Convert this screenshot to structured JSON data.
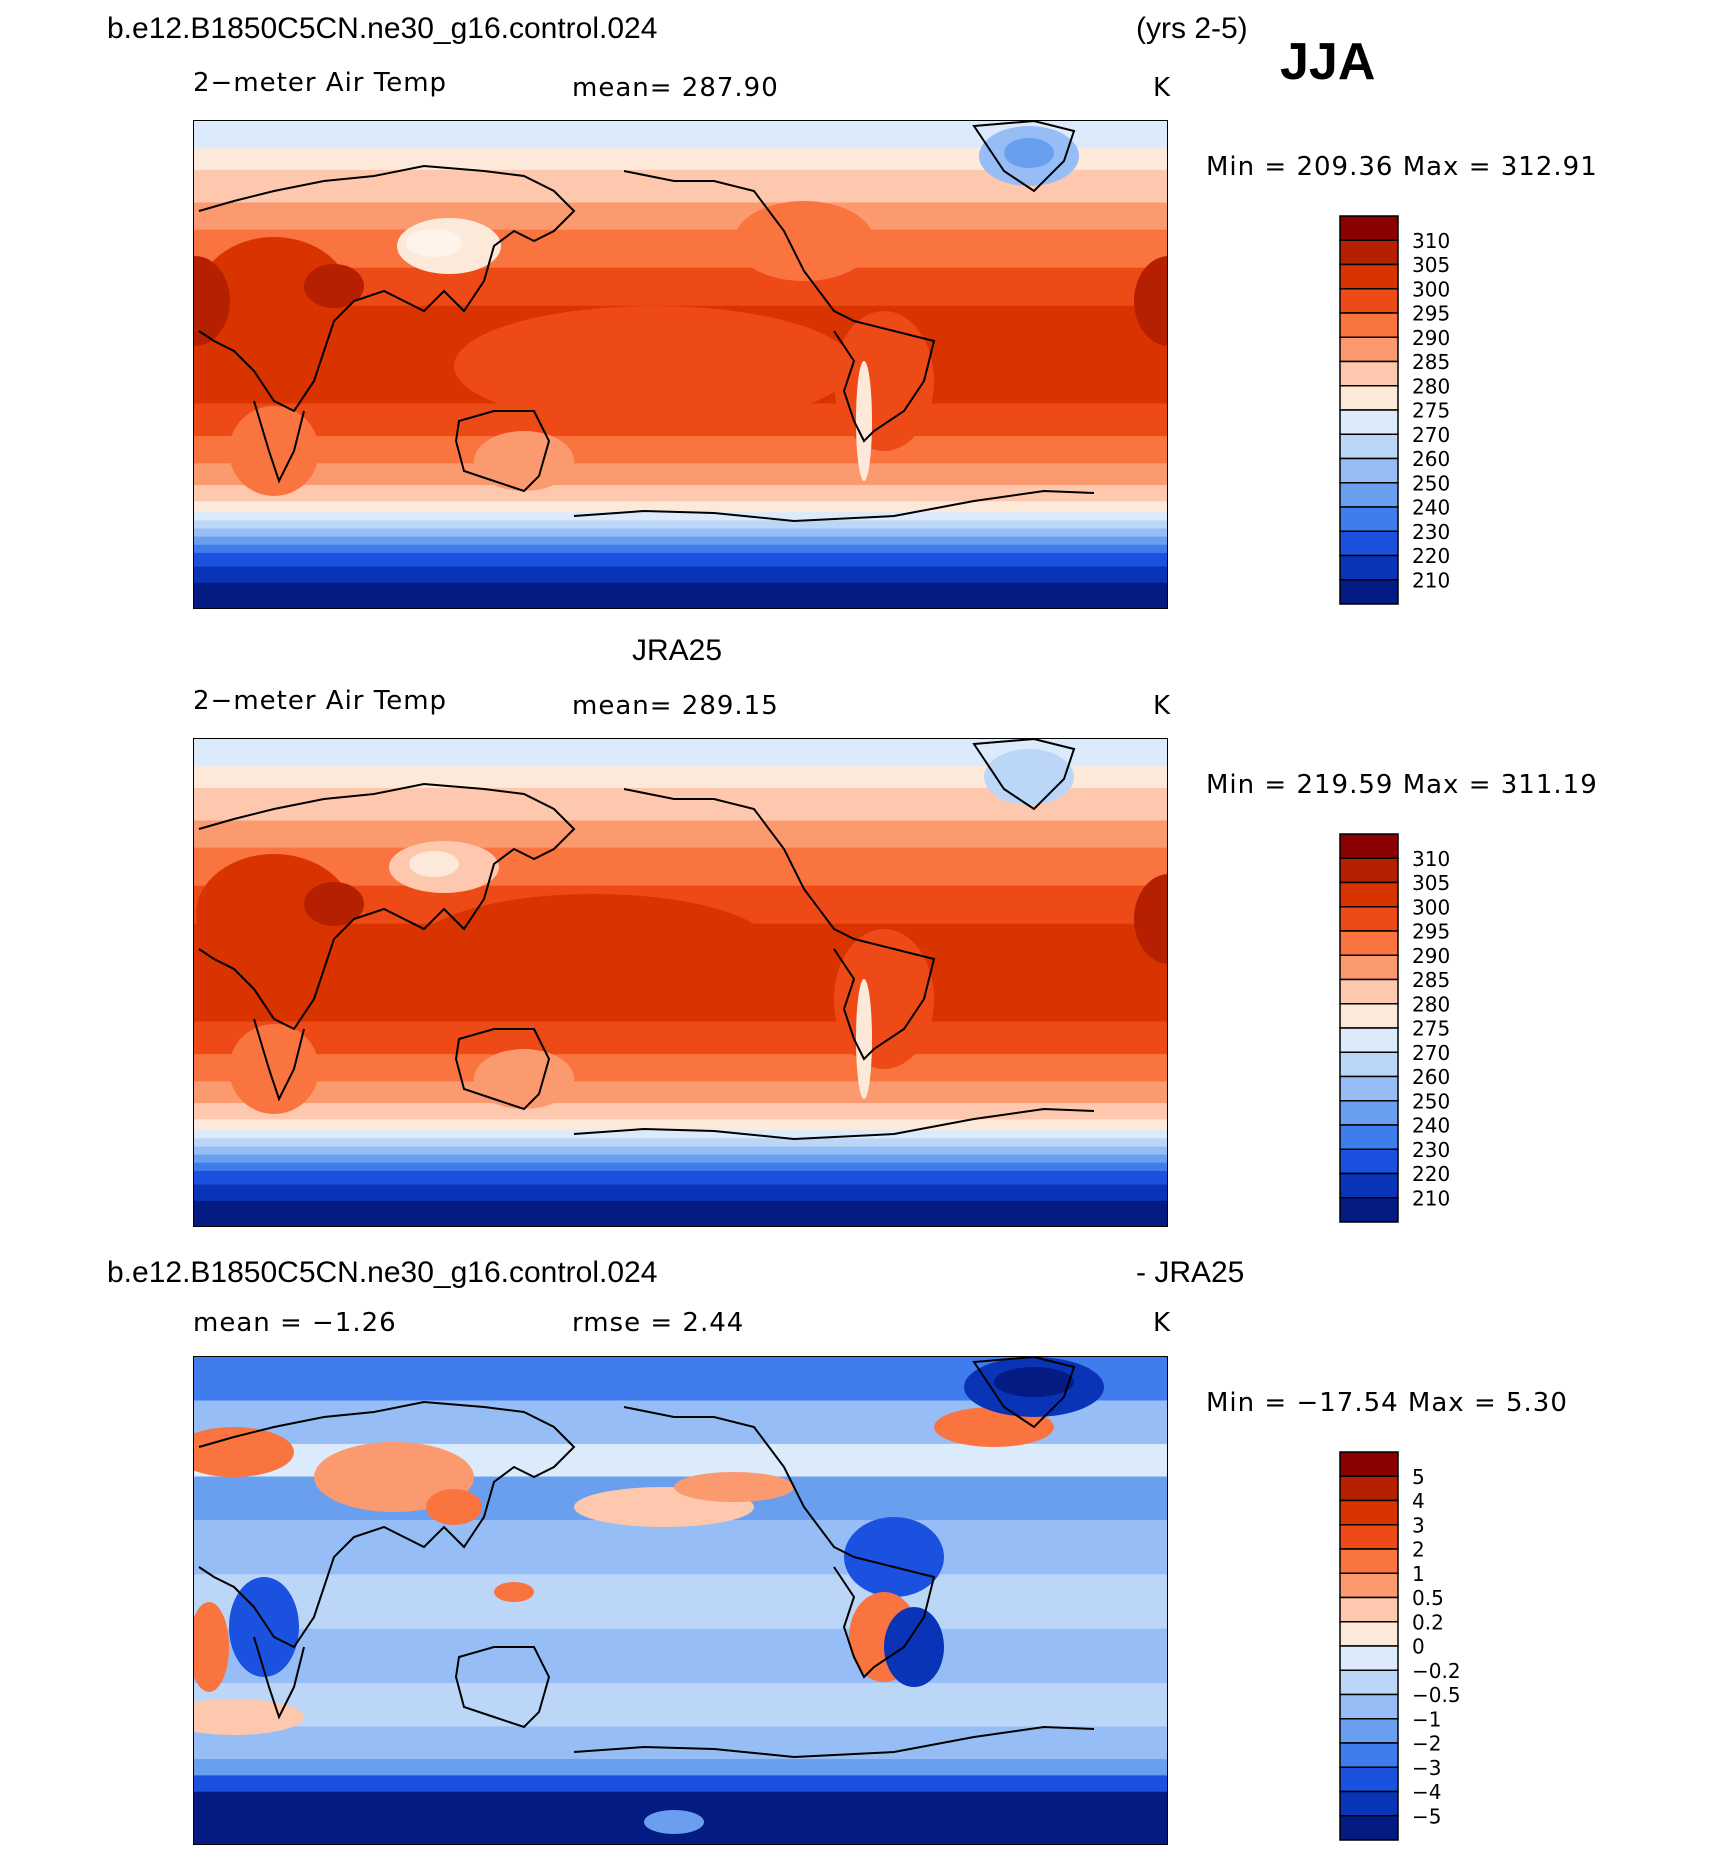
{
  "season": "JJA",
  "panels": [
    {
      "title_left": "b.e12.B1850C5CN.ne30_g16.control.024",
      "title_right": "(yrs 2-5)",
      "variable": "2−meter Air Temp",
      "stat_label": "mean=  287.90",
      "units": "K",
      "minmax": "Min  =  209.36  Max  =  312.91",
      "scale": "abs"
    },
    {
      "title_center": "JRA25",
      "variable": "2−meter Air Temp",
      "stat_label": "mean=  289.15",
      "units": "K",
      "minmax": "Min  =  219.59  Max  =  311.19",
      "scale": "abs"
    },
    {
      "title_left": "b.e12.B1850C5CN.ne30_g16.control.024",
      "title_right": "- JRA25",
      "stat_left": "mean  =    −1.26",
      "stat_center": "rmse  =     2.44",
      "units": "K",
      "minmax": "Min  =  −17.54  Max  =     5.30",
      "scale": "diff"
    }
  ],
  "colorbars": {
    "abs": {
      "labels": [
        "310",
        "305",
        "300",
        "295",
        "290",
        "285",
        "280",
        "275",
        "270",
        "260",
        "250",
        "240",
        "230",
        "220",
        "210"
      ],
      "colors": [
        "#8b0000",
        "#b52000",
        "#d93300",
        "#ee4a17",
        "#fa7440",
        "#fb9a6e",
        "#fdc8ae",
        "#fde9d9",
        "#dcebfb",
        "#bcd6f8",
        "#96bdf5",
        "#6a9ff0",
        "#3f7cec",
        "#1a52df",
        "#0a34b8",
        "#031b82"
      ]
    },
    "diff": {
      "labels": [
        "5",
        "4",
        "3",
        "2",
        "1",
        "0.5",
        "0.2",
        "0",
        "−0.2",
        "−0.5",
        "−1",
        "−2",
        "−3",
        "−4",
        "−5"
      ],
      "colors": [
        "#8b0000",
        "#b52000",
        "#d93300",
        "#ee4a17",
        "#fa7440",
        "#fb9a6e",
        "#fdc8ae",
        "#fde9d9",
        "#dcebfb",
        "#bcd6f8",
        "#96bdf5",
        "#6a9ff0",
        "#3f7cec",
        "#1a52df",
        "#0a34b8",
        "#031b82"
      ]
    }
  },
  "bands": {
    "abs": [
      {
        "lat": 90,
        "c": 8
      },
      {
        "lat": 84,
        "c": 8
      },
      {
        "lat": 80,
        "c": 7
      },
      {
        "lat": 72,
        "c": 6
      },
      {
        "lat": 60,
        "c": 5
      },
      {
        "lat": 50,
        "c": 4
      },
      {
        "lat": 36,
        "c": 3
      },
      {
        "lat": 22,
        "c": 2
      },
      {
        "lat": -4,
        "c": 2
      },
      {
        "lat": -14,
        "c": 3
      },
      {
        "lat": -26,
        "c": 4
      },
      {
        "lat": -36,
        "c": 5
      },
      {
        "lat": -44,
        "c": 6
      },
      {
        "lat": -50,
        "c": 7
      },
      {
        "lat": -54,
        "c": 8
      },
      {
        "lat": -57,
        "c": 9
      },
      {
        "lat": -60,
        "c": 10
      },
      {
        "lat": -63,
        "c": 11
      },
      {
        "lat": -66,
        "c": 12
      },
      {
        "lat": -69,
        "c": 13
      },
      {
        "lat": -74,
        "c": 14
      },
      {
        "lat": -80,
        "c": 15
      }
    ],
    "diff": [
      {
        "lat": 90,
        "c": 12
      },
      {
        "lat": 74,
        "c": 10
      },
      {
        "lat": 58,
        "c": 8
      },
      {
        "lat": 46,
        "c": 11
      },
      {
        "lat": 30,
        "c": 10
      },
      {
        "lat": 10,
        "c": 9
      },
      {
        "lat": -10,
        "c": 10
      },
      {
        "lat": -30,
        "c": 9
      },
      {
        "lat": -46,
        "c": 10
      },
      {
        "lat": -58,
        "c": 11
      },
      {
        "lat": -64,
        "c": 13
      },
      {
        "lat": -70,
        "c": 15
      }
    ]
  }
}
